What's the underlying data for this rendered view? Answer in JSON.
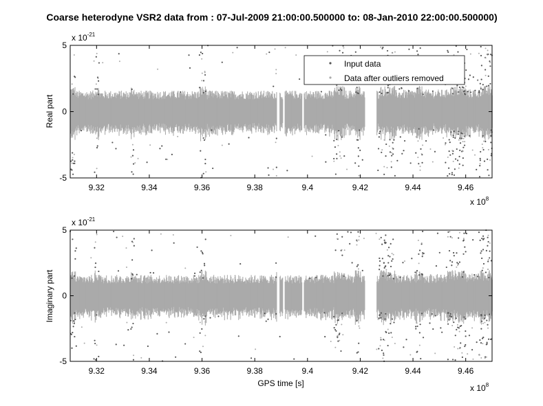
{
  "figure_title": "Coarse heterodyne VSR2 data from : 07-Jul-2009 21:00:00.500000  to: 08-Jan-2010 22:00:00.500000)",
  "colors": {
    "input_data": "#555555",
    "cleaned_data": "#aaaaaa",
    "axes": "#000000",
    "background": "#ffffff"
  },
  "chart_data": [
    {
      "type": "scatter",
      "ylabel": "Real part",
      "xlabel": "",
      "y_exponent_label": "x 10",
      "y_exponent_power": "-21",
      "x_exponent_label": "x 10",
      "x_exponent_power": "8",
      "xlim": [
        9.31,
        9.47
      ],
      "ylim": [
        -5,
        5
      ],
      "x_ticks": [
        9.32,
        9.34,
        9.36,
        9.38,
        9.4,
        9.42,
        9.44,
        9.46
      ],
      "x_tick_labels": [
        "9.32",
        "9.34",
        "9.36",
        "9.38",
        "9.4",
        "9.42",
        "9.44",
        "9.46"
      ],
      "y_ticks": [
        -5,
        0,
        5
      ],
      "y_tick_labels": [
        "-5",
        "0",
        "5"
      ],
      "legend": {
        "position": "top-right",
        "entries": [
          "Input data",
          "Data after outliers removed"
        ]
      },
      "series": [
        {
          "name": "Input data",
          "role": "input",
          "description": "dense noise band roughly between -1.5 and 1.5 with sparse outliers reaching ±5"
        },
        {
          "name": "Data after outliers removed",
          "role": "cleaned",
          "band_half_width": 1.3
        }
      ],
      "gaps": [
        [
          9.3883,
          9.3893
        ],
        [
          9.3905,
          9.3912
        ],
        [
          9.3978,
          9.3985
        ],
        [
          9.4217,
          9.426
        ]
      ]
    },
    {
      "type": "scatter",
      "ylabel": "Imaginary part",
      "xlabel": "GPS time [s]",
      "y_exponent_label": "x 10",
      "y_exponent_power": "-21",
      "x_exponent_label": "x 10",
      "x_exponent_power": "8",
      "xlim": [
        9.31,
        9.47
      ],
      "ylim": [
        -5,
        5
      ],
      "x_ticks": [
        9.32,
        9.34,
        9.36,
        9.38,
        9.4,
        9.42,
        9.44,
        9.46
      ],
      "x_tick_labels": [
        "9.32",
        "9.34",
        "9.36",
        "9.38",
        "9.4",
        "9.42",
        "9.44",
        "9.46"
      ],
      "y_ticks": [
        -5,
        0,
        5
      ],
      "y_tick_labels": [
        "-5",
        "0",
        "5"
      ],
      "series": [
        {
          "name": "Input data",
          "role": "input"
        },
        {
          "name": "Data after outliers removed",
          "role": "cleaned",
          "band_half_width": 1.3
        }
      ],
      "gaps": [
        [
          9.3883,
          9.3893
        ],
        [
          9.3905,
          9.3912
        ],
        [
          9.3978,
          9.3985
        ],
        [
          9.4217,
          9.426
        ]
      ]
    }
  ]
}
